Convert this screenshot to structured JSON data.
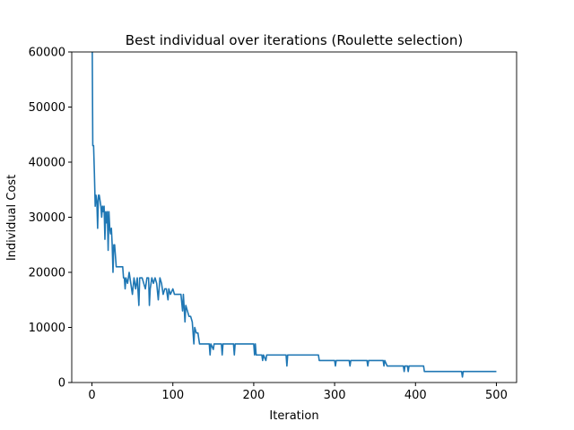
{
  "chart_data": {
    "type": "line",
    "title": "Best individual over iterations (Roulette selection)",
    "x_label": "Iteration",
    "y_label": "Individual Cost",
    "x": [
      0,
      1,
      2,
      3,
      4,
      5,
      6,
      7,
      8,
      9,
      10,
      11,
      12,
      13,
      14,
      15,
      16,
      17,
      18,
      19,
      20,
      21,
      22,
      23,
      24,
      25,
      26,
      27,
      28,
      29,
      30,
      38,
      39,
      40,
      41,
      42,
      44,
      46,
      48,
      50,
      52,
      54,
      56,
      58,
      59,
      62,
      64,
      66,
      68,
      70,
      71,
      72,
      74,
      76,
      78,
      80,
      82,
      84,
      86,
      88,
      90,
      92,
      94,
      95,
      97,
      100,
      102,
      110,
      112,
      113,
      115,
      116,
      118,
      120,
      122,
      124,
      126,
      127,
      129,
      131,
      133,
      135,
      145,
      146,
      147,
      150,
      151,
      160,
      161,
      162,
      175,
      176,
      177,
      200,
      201,
      202,
      203,
      210,
      211,
      212,
      215,
      216,
      240,
      241,
      242,
      280,
      281,
      300,
      301,
      302,
      318,
      319,
      320,
      340,
      341,
      342,
      360,
      361,
      362,
      365,
      366,
      385,
      386,
      387,
      390,
      391,
      392,
      410,
      411,
      457,
      458,
      459,
      500
    ],
    "series": [
      {
        "name": "Best individual",
        "color": "#1f77b4",
        "values": [
          70000,
          43000,
          43000,
          38000,
          32000,
          34000,
          33000,
          28000,
          34000,
          34000,
          33000,
          32000,
          30000,
          32000,
          31000,
          32000,
          26000,
          31000,
          29000,
          31000,
          24000,
          31000,
          28000,
          27000,
          28000,
          25000,
          20000,
          25000,
          25000,
          23000,
          21000,
          21000,
          19000,
          19000,
          17000,
          19000,
          18000,
          20000,
          18000,
          16000,
          19000,
          17000,
          19000,
          14000,
          19000,
          19000,
          18000,
          17000,
          19000,
          19000,
          14000,
          17000,
          19000,
          18000,
          19000,
          18000,
          15000,
          19000,
          18000,
          16000,
          17000,
          17000,
          15000,
          17000,
          16000,
          17000,
          16000,
          16000,
          13000,
          16000,
          11000,
          14000,
          13000,
          12000,
          12000,
          11000,
          7000,
          10000,
          9000,
          9000,
          7000,
          7000,
          7000,
          5000,
          7000,
          6000,
          7000,
          7000,
          5000,
          7000,
          7000,
          5000,
          7000,
          7000,
          5000,
          7000,
          5000,
          5000,
          4000,
          5000,
          4000,
          5000,
          5000,
          3000,
          5000,
          5000,
          4000,
          4000,
          3000,
          4000,
          4000,
          3000,
          4000,
          4000,
          3000,
          4000,
          4000,
          3000,
          4000,
          3000,
          3000,
          3000,
          2000,
          3000,
          3000,
          2000,
          3000,
          3000,
          2000,
          2000,
          1000,
          2000,
          2000
        ]
      }
    ],
    "xlim": [
      -25,
      525
    ],
    "xticks": [
      0,
      100,
      200,
      300,
      400,
      500
    ],
    "ylim": [
      0,
      60000
    ],
    "yticks": [
      0,
      10000,
      20000,
      30000,
      40000,
      50000,
      60000
    ]
  }
}
